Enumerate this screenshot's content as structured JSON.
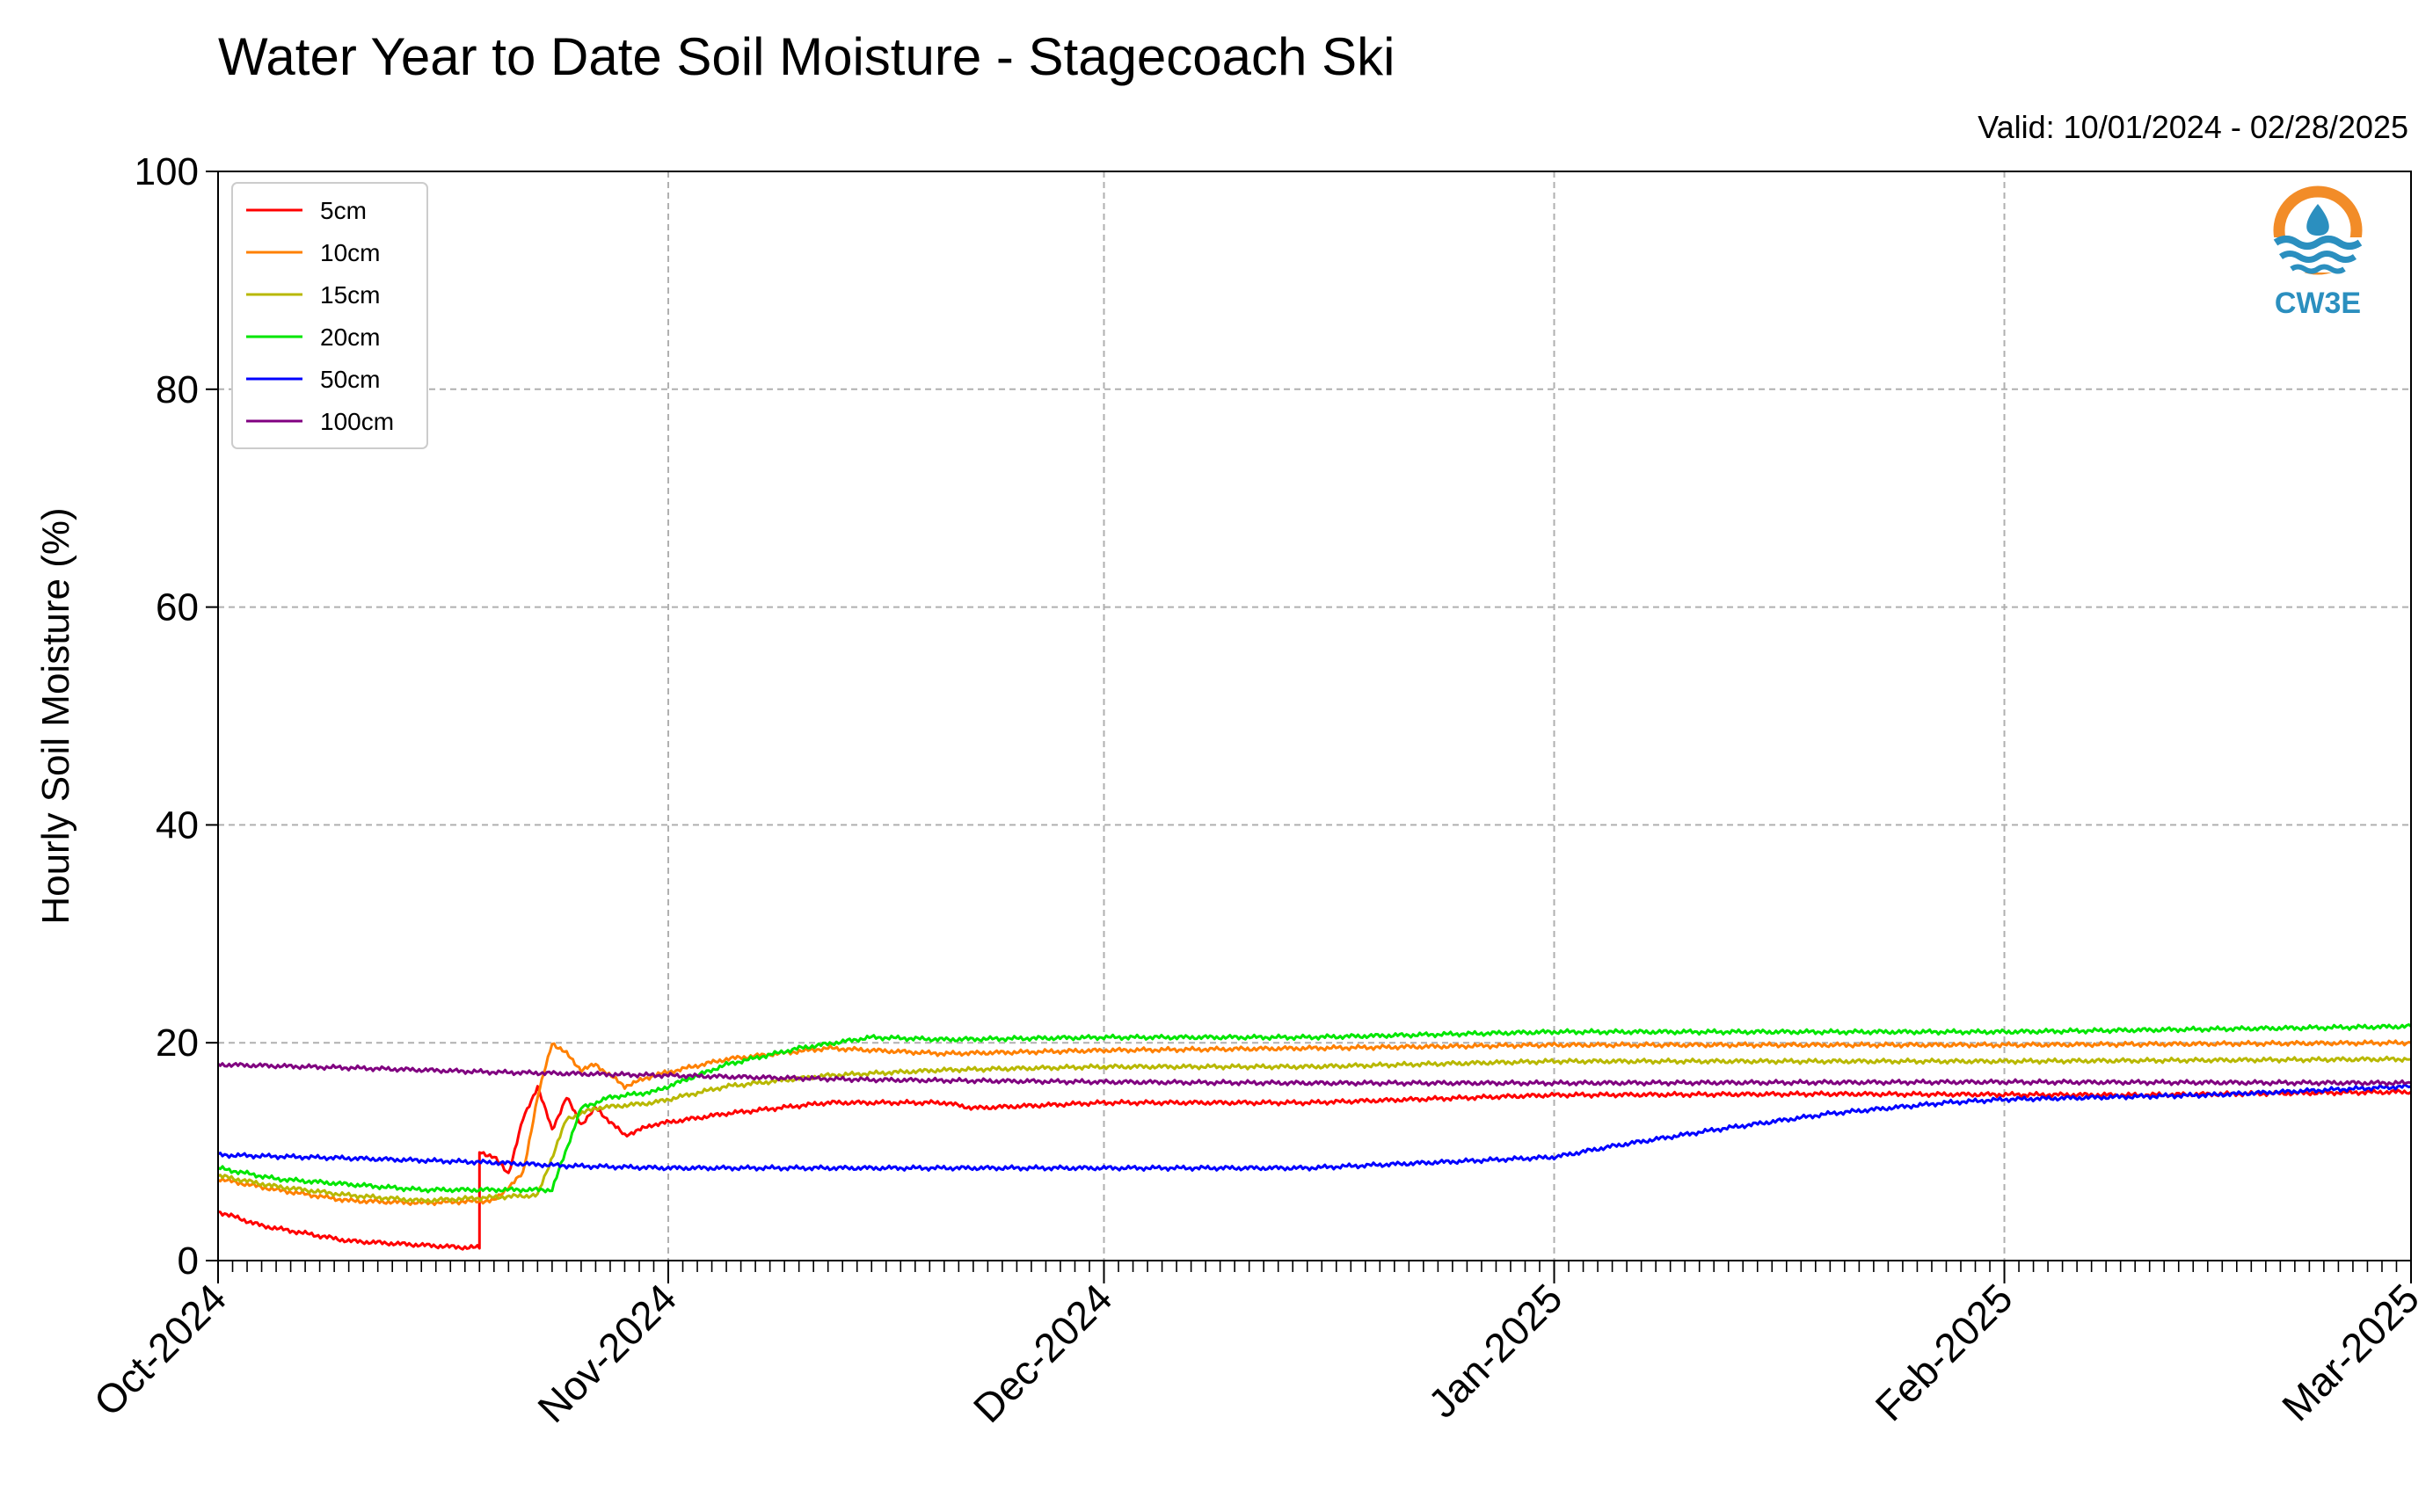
{
  "header": {
    "title": "Water Year to Date Soil Moisture - Stagecoach Ski",
    "valid": "Valid: 10/01/2024 - 02/28/2025"
  },
  "logo": {
    "text": "CW3E",
    "ring_color": "#f28c28",
    "wave_color": "#2b8fbf"
  },
  "chart_data": {
    "type": "line",
    "title": "Water Year to Date Soil Moisture - Stagecoach Ski",
    "xlabel": "",
    "ylabel": "Hourly Soil Moisture (%)",
    "ylim": [
      0,
      100
    ],
    "xlim": [
      "2024-10-01",
      "2025-03-01"
    ],
    "yticks": [
      0,
      20,
      40,
      60,
      80,
      100
    ],
    "xticks": [
      {
        "date": "2024-10-01",
        "label": "Oct-2024"
      },
      {
        "date": "2024-11-01",
        "label": "Nov-2024"
      },
      {
        "date": "2024-12-01",
        "label": "Dec-2024"
      },
      {
        "date": "2025-01-01",
        "label": "Jan-2025"
      },
      {
        "date": "2025-02-01",
        "label": "Feb-2025"
      },
      {
        "date": "2025-03-01",
        "label": "Mar-2025"
      }
    ],
    "grid": true,
    "legend_position": "top-left",
    "series": [
      {
        "name": "5cm",
        "color": "#ff0000",
        "points": [
          [
            "2024-10-01",
            4.5
          ],
          [
            "2024-10-04",
            3.2
          ],
          [
            "2024-10-07",
            2.5
          ],
          [
            "2024-10-10",
            1.8
          ],
          [
            "2024-10-14",
            1.5
          ],
          [
            "2024-10-18",
            1.2
          ],
          [
            "2024-10-19",
            1.2
          ],
          [
            "2024-10-19",
            10.0
          ],
          [
            "2024-10-20",
            9.5
          ],
          [
            "2024-10-21",
            8.0
          ],
          [
            "2024-10-22",
            13.0
          ],
          [
            "2024-10-23",
            16.0
          ],
          [
            "2024-10-24",
            12.0
          ],
          [
            "2024-10-25",
            15.0
          ],
          [
            "2024-10-26",
            12.5
          ],
          [
            "2024-10-27",
            14.0
          ],
          [
            "2024-10-29",
            11.5
          ],
          [
            "2024-10-31",
            12.5
          ],
          [
            "2024-11-05",
            13.5
          ],
          [
            "2024-11-12",
            14.5
          ],
          [
            "2024-11-20",
            14.5
          ],
          [
            "2024-11-22",
            14.0
          ],
          [
            "2024-12-01",
            14.5
          ],
          [
            "2024-12-15",
            14.5
          ],
          [
            "2025-01-01",
            15.2
          ],
          [
            "2025-01-20",
            15.3
          ],
          [
            "2025-02-10",
            15.2
          ],
          [
            "2025-03-01",
            15.5
          ]
        ]
      },
      {
        "name": "10cm",
        "color": "#ff8000",
        "points": [
          [
            "2024-10-01",
            7.5
          ],
          [
            "2024-10-05",
            6.5
          ],
          [
            "2024-10-10",
            5.5
          ],
          [
            "2024-10-15",
            5.3
          ],
          [
            "2024-10-20",
            5.5
          ],
          [
            "2024-10-22",
            8.0
          ],
          [
            "2024-10-23",
            15.0
          ],
          [
            "2024-10-24",
            20.0
          ],
          [
            "2024-10-25",
            19.0
          ],
          [
            "2024-10-26",
            17.5
          ],
          [
            "2024-10-27",
            18.0
          ],
          [
            "2024-10-29",
            16.0
          ],
          [
            "2024-10-31",
            17.0
          ],
          [
            "2024-11-05",
            18.5
          ],
          [
            "2024-11-12",
            19.5
          ],
          [
            "2024-11-20",
            19.0
          ],
          [
            "2024-12-01",
            19.3
          ],
          [
            "2024-12-15",
            19.5
          ],
          [
            "2025-01-01",
            19.8
          ],
          [
            "2025-02-01",
            19.8
          ],
          [
            "2025-03-01",
            20.0
          ]
        ]
      },
      {
        "name": "15cm",
        "color": "#b8b800",
        "points": [
          [
            "2024-10-01",
            7.8
          ],
          [
            "2024-10-05",
            6.8
          ],
          [
            "2024-10-10",
            6.0
          ],
          [
            "2024-10-15",
            5.5
          ],
          [
            "2024-10-23",
            6.0
          ],
          [
            "2024-10-25",
            13.0
          ],
          [
            "2024-10-27",
            14.0
          ],
          [
            "2024-10-31",
            14.5
          ],
          [
            "2024-11-05",
            16.0
          ],
          [
            "2024-11-12",
            17.0
          ],
          [
            "2024-11-20",
            17.5
          ],
          [
            "2024-12-01",
            17.8
          ],
          [
            "2024-12-15",
            17.8
          ],
          [
            "2025-01-01",
            18.3
          ],
          [
            "2025-02-01",
            18.3
          ],
          [
            "2025-03-01",
            18.5
          ]
        ]
      },
      {
        "name": "20cm",
        "color": "#00e600",
        "points": [
          [
            "2024-10-01",
            8.5
          ],
          [
            "2024-10-05",
            7.5
          ],
          [
            "2024-10-10",
            7.0
          ],
          [
            "2024-10-15",
            6.5
          ],
          [
            "2024-10-20",
            6.5
          ],
          [
            "2024-10-24",
            6.5
          ],
          [
            "2024-10-26",
            14.0
          ],
          [
            "2024-10-28",
            15.0
          ],
          [
            "2024-10-31",
            15.5
          ],
          [
            "2024-11-05",
            18.0
          ],
          [
            "2024-11-10",
            19.5
          ],
          [
            "2024-11-15",
            20.5
          ],
          [
            "2024-11-20",
            20.3
          ],
          [
            "2024-12-01",
            20.5
          ],
          [
            "2024-12-15",
            20.5
          ],
          [
            "2025-01-01",
            21.0
          ],
          [
            "2025-02-01",
            21.0
          ],
          [
            "2025-03-01",
            21.5
          ]
        ]
      },
      {
        "name": "50cm",
        "color": "#0000ff",
        "points": [
          [
            "2024-10-01",
            9.7
          ],
          [
            "2024-10-10",
            9.4
          ],
          [
            "2024-10-20",
            9.0
          ],
          [
            "2024-10-25",
            8.7
          ],
          [
            "2024-11-01",
            8.5
          ],
          [
            "2024-11-15",
            8.5
          ],
          [
            "2024-12-01",
            8.5
          ],
          [
            "2024-12-15",
            8.5
          ],
          [
            "2025-01-01",
            9.5
          ],
          [
            "2025-01-05",
            10.5
          ],
          [
            "2025-01-12",
            12.0
          ],
          [
            "2025-01-20",
            13.5
          ],
          [
            "2025-01-28",
            14.5
          ],
          [
            "2025-02-01",
            14.8
          ],
          [
            "2025-02-15",
            15.2
          ],
          [
            "2025-03-01",
            16.0
          ]
        ]
      },
      {
        "name": "100cm",
        "color": "#800080",
        "points": [
          [
            "2024-10-01",
            18.0
          ],
          [
            "2024-10-10",
            17.7
          ],
          [
            "2024-10-20",
            17.3
          ],
          [
            "2024-11-01",
            17.0
          ],
          [
            "2024-11-15",
            16.6
          ],
          [
            "2024-12-01",
            16.4
          ],
          [
            "2024-12-15",
            16.3
          ],
          [
            "2025-01-01",
            16.3
          ],
          [
            "2025-02-01",
            16.4
          ],
          [
            "2025-03-01",
            16.3
          ]
        ]
      }
    ]
  }
}
